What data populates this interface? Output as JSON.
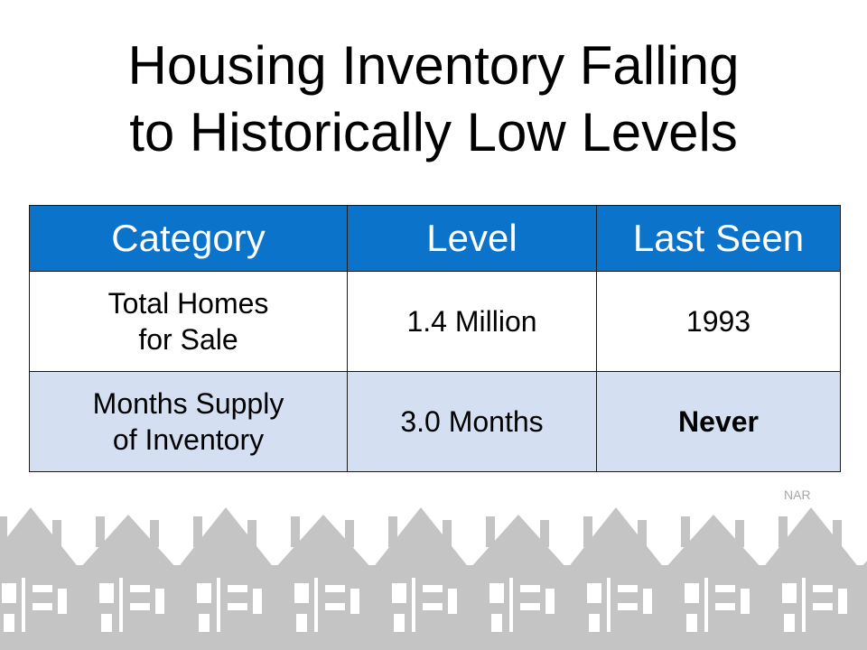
{
  "slide": {
    "title_line1": "Housing Inventory Falling",
    "title_line2": "to Historically Low Levels",
    "source": "NAR"
  },
  "table": {
    "headers": [
      "Category",
      "Level",
      "Last Seen"
    ],
    "rows": [
      {
        "category_line1": "Total Homes",
        "category_line2": "for Sale",
        "level": "1.4 Million",
        "last_seen": "1993"
      },
      {
        "category_line1": "Months Supply",
        "category_line2": "of Inventory",
        "level": "3.0 Months",
        "last_seen": "Never"
      }
    ]
  },
  "colors": {
    "header_bg": "#0b73c9",
    "row_alt_bg": "#d4dff1",
    "house_gray": "#c4c4c4"
  },
  "decoration": {
    "icon": "house-row-icon"
  }
}
